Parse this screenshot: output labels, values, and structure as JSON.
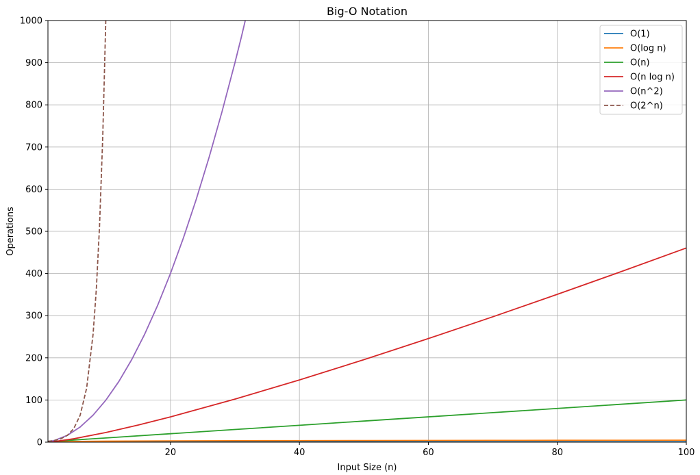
{
  "chart_data": {
    "type": "line",
    "title": "Big-O Notation",
    "xlabel": "Input Size (n)",
    "ylabel": "Operations",
    "xlim": [
      1,
      100
    ],
    "ylim": [
      0,
      1000
    ],
    "xticks": [
      20,
      40,
      60,
      80,
      100
    ],
    "yticks": [
      0,
      100,
      200,
      300,
      400,
      500,
      600,
      700,
      800,
      900,
      1000
    ],
    "grid": true,
    "legend_position": "top-right",
    "series": [
      {
        "name": "O(1)",
        "color": "#1f77b4",
        "dashed": false,
        "x": [
          1,
          100
        ],
        "y": [
          1,
          1
        ]
      },
      {
        "name": "O(log n)",
        "color": "#ff7f0e",
        "dashed": false,
        "x": [
          1,
          2,
          5,
          10,
          20,
          30,
          40,
          50,
          60,
          70,
          80,
          90,
          100
        ],
        "y": [
          0,
          0.69,
          1.61,
          2.3,
          3.0,
          3.4,
          3.69,
          3.91,
          4.09,
          4.25,
          4.38,
          4.5,
          4.61
        ]
      },
      {
        "name": "O(n)",
        "color": "#2ca02c",
        "dashed": false,
        "x": [
          1,
          10,
          20,
          30,
          40,
          50,
          60,
          70,
          80,
          90,
          100
        ],
        "y": [
          1,
          10,
          20,
          30,
          40,
          50,
          60,
          70,
          80,
          90,
          100
        ]
      },
      {
        "name": "O(n log n)",
        "color": "#d62728",
        "dashed": false,
        "x": [
          1,
          2,
          5,
          10,
          15,
          20,
          30,
          40,
          50,
          60,
          70,
          80,
          90,
          100
        ],
        "y": [
          0,
          1.4,
          8.0,
          23.0,
          40.6,
          59.9,
          102.0,
          147.6,
          195.6,
          245.7,
          297.4,
          350.6,
          405.0,
          460.5
        ]
      },
      {
        "name": "O(n^2)",
        "color": "#9467bd",
        "dashed": false,
        "x": [
          1,
          2,
          4,
          6,
          8,
          10,
          12,
          14,
          16,
          18,
          20,
          22,
          24,
          26,
          28,
          30,
          31,
          31.6
        ],
        "y": [
          1,
          4,
          16,
          36,
          64,
          100,
          144,
          196,
          256,
          324,
          400,
          484,
          576,
          676,
          784,
          900,
          961,
          1000
        ]
      },
      {
        "name": "O(2^n)",
        "color": "#8c564b",
        "dashed": true,
        "x": [
          1,
          2,
          3,
          4,
          5,
          6,
          7,
          8,
          8.5,
          9,
          9.5,
          9.97
        ],
        "y": [
          2,
          4,
          8,
          16,
          32,
          64,
          128,
          256,
          362,
          512,
          724,
          1000
        ]
      }
    ]
  }
}
